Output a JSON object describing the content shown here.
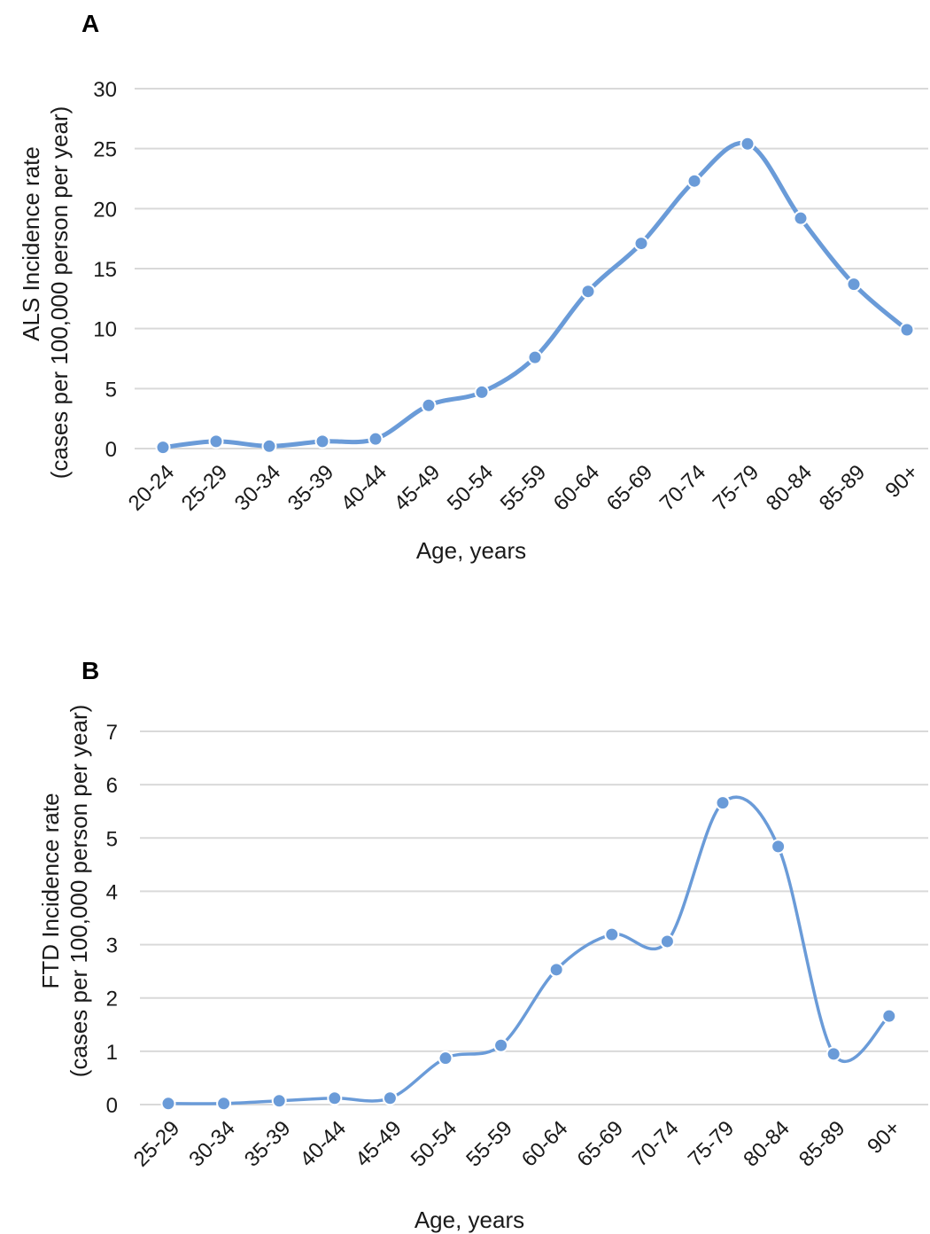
{
  "chart_data": [
    {
      "type": "line",
      "panel_label": "A",
      "categories": [
        "20-24",
        "25-29",
        "30-34",
        "35-39",
        "40-44",
        "45-49",
        "50-54",
        "55-59",
        "60-64",
        "65-69",
        "70-74",
        "75-79",
        "80-84",
        "85-89",
        "90+"
      ],
      "series": [
        {
          "values": [
            0.1,
            0.6,
            0.2,
            0.6,
            0.8,
            3.6,
            4.7,
            7.6,
            13.1,
            17.1,
            22.3,
            25.4,
            19.2,
            13.7,
            9.9
          ]
        }
      ],
      "xlabel": "Age, years",
      "ylabel": [
        "ALS Incidence rate",
        "(cases per 100,000 person per year)"
      ],
      "yticks": [
        0,
        5,
        10,
        15,
        20,
        25,
        30
      ],
      "ylim": [
        0,
        30
      ],
      "grid": true,
      "color": "#6a9bd8"
    },
    {
      "type": "line",
      "panel_label": "B",
      "categories": [
        "25-29",
        "30-34",
        "35-39",
        "40-44",
        "45-49",
        "50-54",
        "55-59",
        "60-64",
        "65-69",
        "70-74",
        "75-79",
        "80-84",
        "85-89",
        "90+"
      ],
      "series": [
        {
          "values": [
            0.02,
            0.02,
            0.07,
            0.12,
            0.12,
            0.87,
            1.11,
            2.53,
            3.19,
            3.06,
            5.66,
            4.84,
            0.95,
            1.66
          ]
        }
      ],
      "xlabel": "Age, years",
      "ylabel": [
        "FTD Incidence rate",
        "(cases per 100,000 person per year)"
      ],
      "yticks": [
        0,
        1,
        2,
        3,
        4,
        5,
        6,
        7
      ],
      "ylim": [
        0,
        7
      ],
      "grid": true,
      "color": "#6a9bd8"
    }
  ]
}
